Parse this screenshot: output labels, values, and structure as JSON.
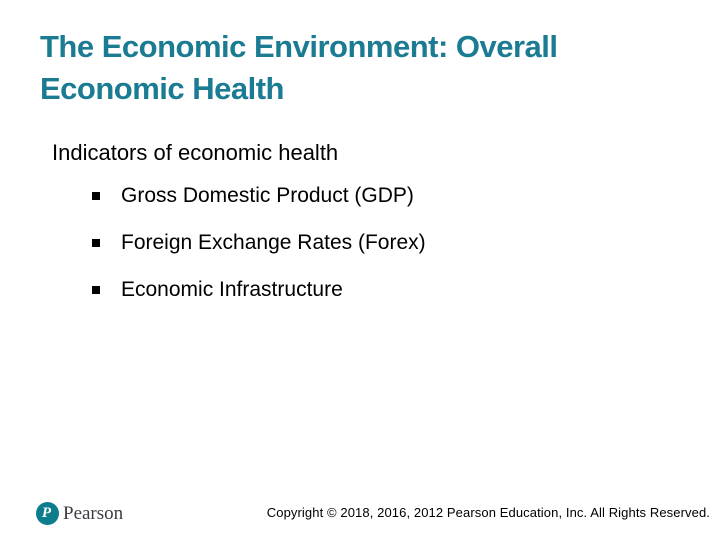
{
  "title": {
    "text": "The Economic Environment: Overall Economic Health",
    "lines": [
      "The Economic Environment: Overall",
      "Economic Health"
    ]
  },
  "body": {
    "heading": "Indicators of economic health",
    "bullets": [
      "Gross Domestic Product (GDP)",
      "Foreign Exchange Rates (Forex)",
      "Economic Infrastructure"
    ],
    "bullet_style": "square"
  },
  "footer": {
    "brand": "Pearson",
    "logo_letter": "P",
    "copyright": "Copyright © 2018, 2016, 2012 Pearson Education, Inc. All Rights Reserved."
  },
  "colors": {
    "title_teal": "#1A7B92",
    "logo_teal": "#0D7C8C",
    "body_text": "#000000"
  }
}
